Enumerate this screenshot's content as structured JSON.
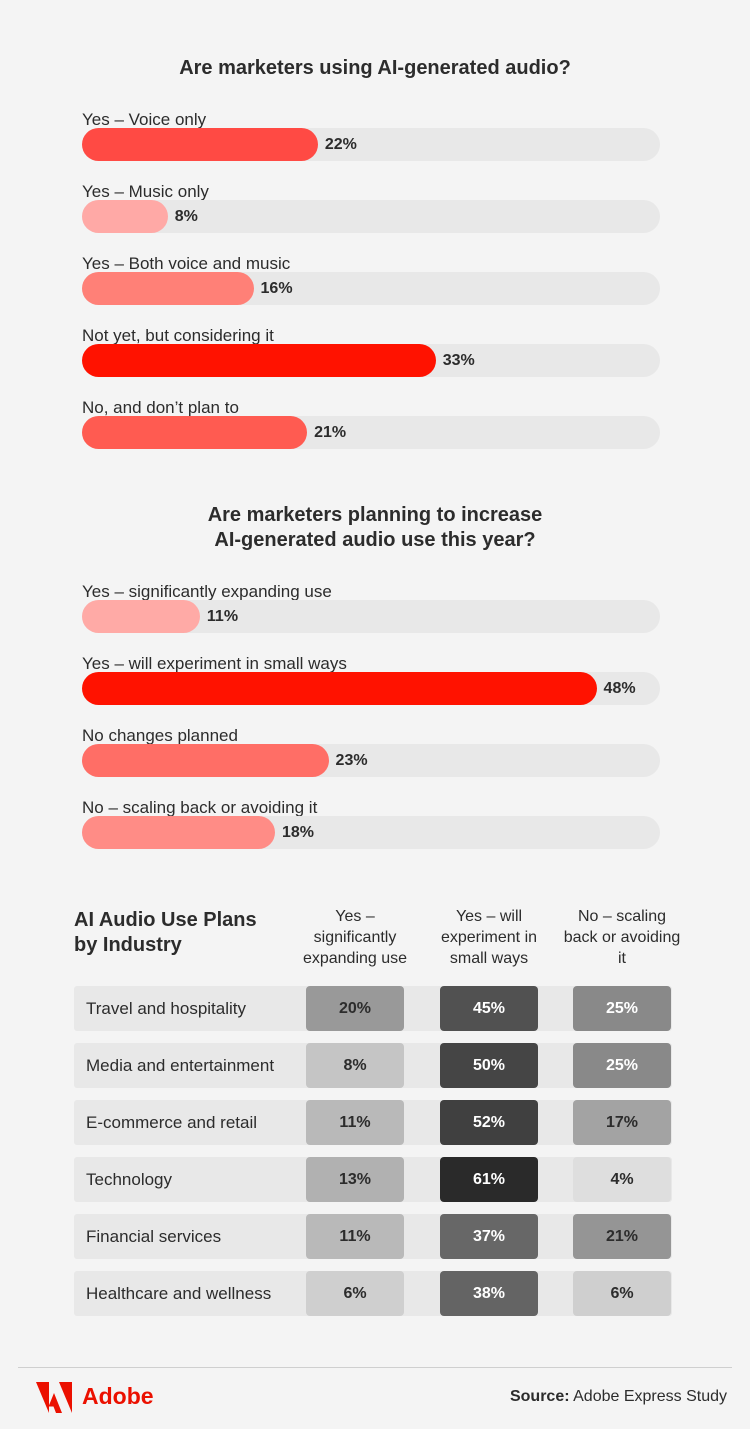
{
  "chart_data": [
    {
      "type": "bar",
      "title": "Are marketers using AI-generated audio?",
      "categories": [
        "Yes – Voice only",
        "Yes – Music only",
        "Yes – Both voice and music",
        "Not yet, but considering it",
        "No, and don’t plan to"
      ],
      "values": [
        22,
        8,
        16,
        33,
        21
      ],
      "value_labels": [
        "22%",
        "8%",
        "16%",
        "33%",
        "21%"
      ],
      "colors": [
        "#ff4a44",
        "#ffa9a6",
        "#ff8077",
        "#ff1200",
        "#ff5b51"
      ]
    },
    {
      "type": "bar",
      "title": "Are marketers planning to increase AI-generated audio use this year?",
      "categories": [
        "Yes – significantly expanding use",
        "Yes – will experiment in small ways",
        "No changes planned",
        "No – scaling back or avoiding it"
      ],
      "values": [
        11,
        48,
        23,
        18
      ],
      "value_labels": [
        "11%",
        "48%",
        "23%",
        "18%"
      ],
      "colors": [
        "#ffaaa6",
        "#ff1200",
        "#ff6e66",
        "#ff8c86"
      ]
    },
    {
      "type": "heatmap",
      "title": "AI Audio Use Plans by Industry",
      "columns": [
        "Yes – significantly expanding use",
        "Yes – will experiment in small ways",
        "No – scaling back or avoiding it"
      ],
      "rows": [
        "Travel and hospitality",
        "Media and entertainment",
        "E-commerce and retail",
        "Technology",
        "Financial services",
        "Healthcare and wellness"
      ],
      "values": [
        [
          20,
          45,
          25
        ],
        [
          8,
          50,
          25
        ],
        [
          11,
          52,
          17
        ],
        [
          13,
          61,
          4
        ],
        [
          11,
          37,
          21
        ],
        [
          6,
          38,
          6
        ]
      ],
      "value_labels": [
        [
          "20%",
          "45%",
          "25%"
        ],
        [
          "8%",
          "50%",
          "25%"
        ],
        [
          "11%",
          "52%",
          "17%"
        ],
        [
          "13%",
          "61%",
          "4%"
        ],
        [
          "11%",
          "37%",
          "21%"
        ],
        [
          "6%",
          "38%",
          "6%"
        ]
      ]
    }
  ],
  "footer": {
    "brand": "Adobe",
    "source_label": "Source:",
    "source": "Adobe Express Study"
  }
}
